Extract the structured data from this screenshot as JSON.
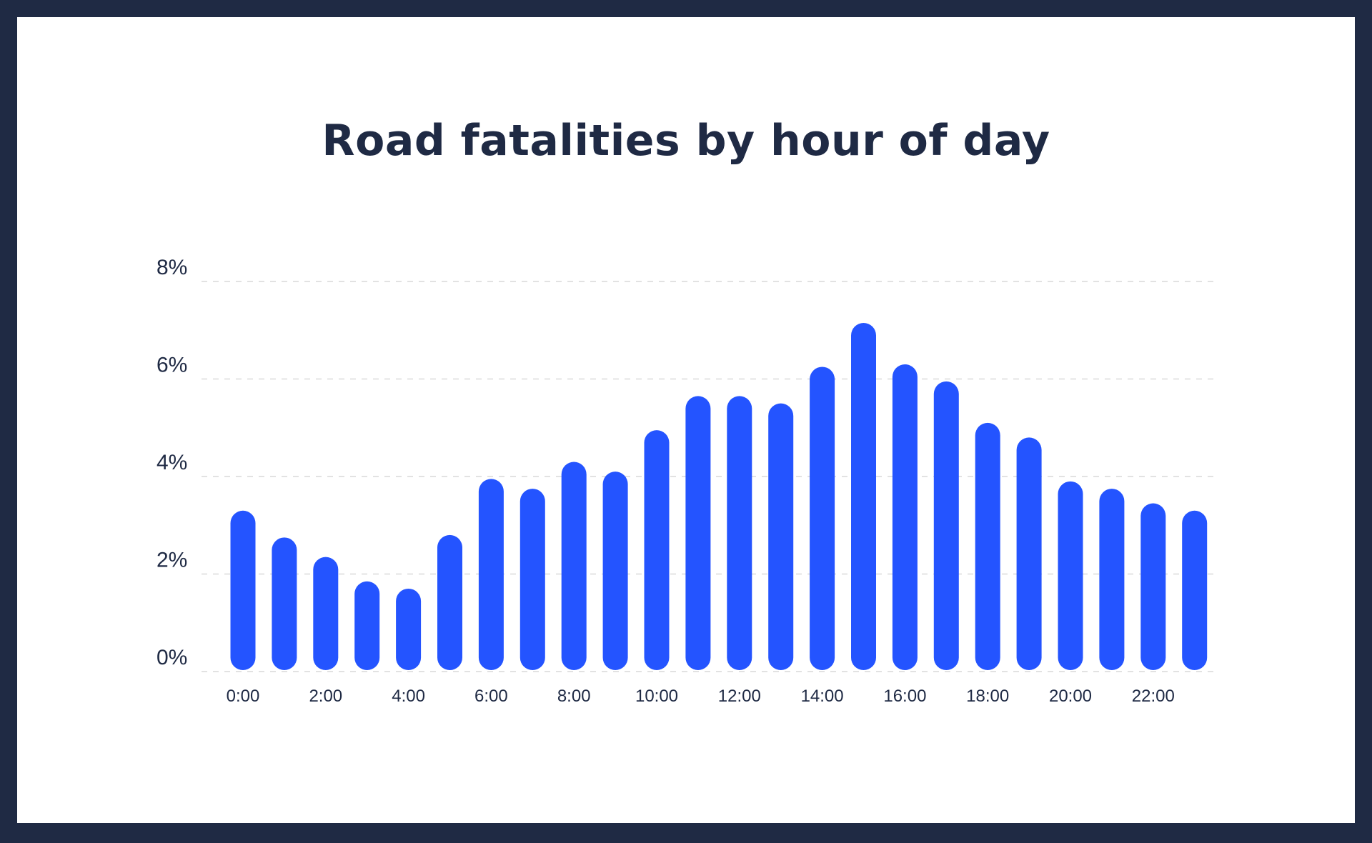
{
  "chart_data": {
    "type": "bar",
    "title": "Road fatalities by hour of day",
    "xlabel": "",
    "ylabel": "",
    "ylim": [
      0,
      8
    ],
    "grid": true,
    "y_ticks": [
      "0%",
      "2%",
      "4%",
      "6%",
      "8%"
    ],
    "x_tick_labels": [
      "0:00",
      "2:00",
      "4:00",
      "6:00",
      "8:00",
      "10:00",
      "12:00",
      "14:00",
      "16:00",
      "18:00",
      "20:00",
      "22:00"
    ],
    "categories": [
      "0:00",
      "1:00",
      "2:00",
      "3:00",
      "4:00",
      "5:00",
      "6:00",
      "7:00",
      "8:00",
      "9:00",
      "10:00",
      "11:00",
      "12:00",
      "13:00",
      "14:00",
      "15:00",
      "16:00",
      "17:00",
      "18:00",
      "19:00",
      "20:00",
      "21:00",
      "22:00",
      "23:00"
    ],
    "values": [
      3.3,
      2.75,
      2.35,
      1.85,
      1.7,
      2.8,
      3.95,
      3.75,
      4.3,
      4.1,
      4.95,
      5.65,
      5.65,
      5.5,
      6.25,
      7.15,
      6.3,
      5.95,
      5.1,
      4.8,
      3.9,
      3.75,
      3.45,
      3.3
    ],
    "colors": {
      "bar": "#2454ff",
      "grid": "#d9d9d9",
      "text": "#1f2a44",
      "frame": "#1f2a44"
    }
  }
}
